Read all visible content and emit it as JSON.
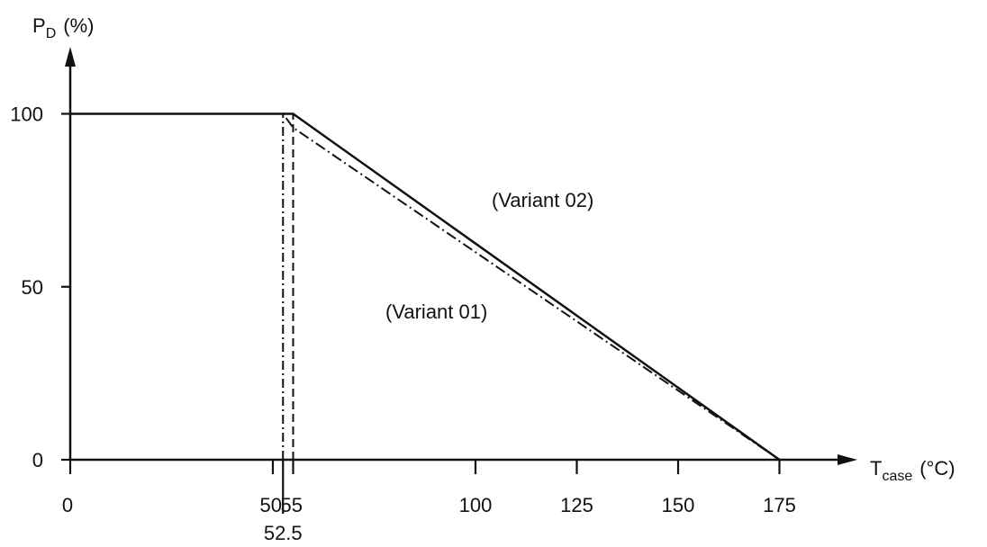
{
  "chart_data": {
    "type": "line",
    "xlabel": "T",
    "xlabel_sub": "case",
    "xlabel_unit": "(°C)",
    "ylabel": "P",
    "ylabel_sub": "D",
    "ylabel_unit": "(%)",
    "xlim": [
      0,
      175
    ],
    "ylim": [
      0,
      100
    ],
    "x_ticks": [
      0,
      50,
      55,
      100,
      125,
      150,
      175
    ],
    "x_ticks_extra": [
      52.5
    ],
    "y_ticks": [
      0,
      50,
      100
    ],
    "grid": false,
    "legend": "none",
    "series": [
      {
        "name": "(Variant 02)",
        "style": "solid",
        "x": [
          0,
          55,
          175
        ],
        "y": [
          100,
          100,
          0
        ]
      },
      {
        "name": "(Variant 01)",
        "style": "dash-dot",
        "x": [
          0,
          52.5,
          55,
          175
        ],
        "y": [
          100,
          100,
          96,
          0
        ]
      }
    ],
    "reference_lines": [
      {
        "x": 52.5,
        "style": "dash-dot",
        "from": 0,
        "to": 100
      },
      {
        "x": 55,
        "style": "dashed",
        "from": 0,
        "to": 100
      }
    ]
  }
}
